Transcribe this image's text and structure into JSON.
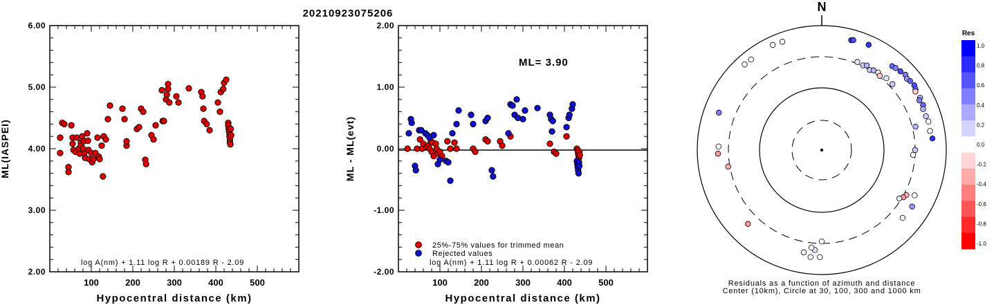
{
  "title": "20210923075206",
  "chart_data": [
    {
      "type": "scatter",
      "name": "magnitude-vs-distance",
      "xlabel": "Hypocentral distance (km)",
      "ylabel": "ML(IASPEI)",
      "xlim": [
        0,
        600
      ],
      "ylim": [
        2.0,
        6.0
      ],
      "x_ticks": [
        "100",
        "200",
        "300",
        "400",
        "500"
      ],
      "y_ticks": [
        "2.00",
        "3.00",
        "4.00",
        "5.00",
        "6.00"
      ],
      "formula": "log A(nm) + 1.11 log R + 0.00189 R - 2.09",
      "marker_color": "#dd0000",
      "points": [
        [
          25,
          4.18
        ],
        [
          25,
          3.93
        ],
        [
          30,
          4.42
        ],
        [
          35,
          4.4
        ],
        [
          45,
          3.7
        ],
        [
          45,
          3.62
        ],
        [
          52,
          4.38
        ],
        [
          55,
          4.18
        ],
        [
          55,
          4.08
        ],
        [
          57,
          3.98
        ],
        [
          62,
          3.95
        ],
        [
          65,
          4.18
        ],
        [
          70,
          4.0
        ],
        [
          72,
          3.92
        ],
        [
          75,
          4.1
        ],
        [
          75,
          4.05
        ],
        [
          78,
          4.2
        ],
        [
          80,
          4.0
        ],
        [
          82,
          4.12
        ],
        [
          83,
          3.92
        ],
        [
          85,
          3.85
        ],
        [
          90,
          4.25
        ],
        [
          92,
          4.13
        ],
        [
          93,
          3.98
        ],
        [
          95,
          3.83
        ],
        [
          100,
          3.93
        ],
        [
          102,
          3.78
        ],
        [
          105,
          3.83
        ],
        [
          110,
          3.93
        ],
        [
          115,
          4.18
        ],
        [
          118,
          3.87
        ],
        [
          120,
          3.83
        ],
        [
          125,
          4.05
        ],
        [
          128,
          3.55
        ],
        [
          130,
          4.2
        ],
        [
          135,
          4.15
        ],
        [
          140,
          4.48
        ],
        [
          145,
          4.7
        ],
        [
          175,
          4.65
        ],
        [
          180,
          4.48
        ],
        [
          185,
          4.05
        ],
        [
          185,
          4.12
        ],
        [
          210,
          4.32
        ],
        [
          215,
          4.35
        ],
        [
          220,
          4.65
        ],
        [
          225,
          4.6
        ],
        [
          230,
          3.82
        ],
        [
          232,
          3.75
        ],
        [
          245,
          4.22
        ],
        [
          250,
          4.15
        ],
        [
          255,
          4.38
        ],
        [
          270,
          4.95
        ],
        [
          272,
          4.45
        ],
        [
          275,
          4.45
        ],
        [
          280,
          4.8
        ],
        [
          282,
          4.88
        ],
        [
          285,
          4.97
        ],
        [
          285,
          5.05
        ],
        [
          288,
          4.75
        ],
        [
          305,
          4.85
        ],
        [
          310,
          4.75
        ],
        [
          335,
          4.98
        ],
        [
          365,
          4.92
        ],
        [
          368,
          4.85
        ],
        [
          370,
          4.65
        ],
        [
          372,
          4.45
        ],
        [
          378,
          4.4
        ],
        [
          385,
          4.3
        ],
        [
          405,
          4.75
        ],
        [
          410,
          4.6
        ],
        [
          412,
          4.92
        ],
        [
          418,
          4.97
        ],
        [
          420,
          5.07
        ],
        [
          425,
          5.12
        ],
        [
          430,
          4.42
        ],
        [
          430,
          4.38
        ],
        [
          431,
          4.33
        ],
        [
          432,
          4.28
        ],
        [
          433,
          4.25
        ],
        [
          433,
          4.2
        ],
        [
          434,
          4.15
        ],
        [
          434,
          4.1
        ],
        [
          435,
          4.07
        ],
        [
          436,
          4.32
        ],
        [
          437,
          4.22
        ]
      ]
    },
    {
      "type": "scatter",
      "name": "residual-vs-distance",
      "xlabel": "Hypocentral distance (km)",
      "ylabel": "ML - ML(evt)",
      "xlim": [
        0,
        600
      ],
      "ylim": [
        -2.0,
        2.0
      ],
      "x_ticks": [
        "100",
        "200",
        "300",
        "400",
        "500"
      ],
      "y_ticks": [
        "-2.00",
        "-1.00",
        "0.00",
        "1.00",
        "2.00"
      ],
      "ml_label": "ML=  3.90",
      "legend": [
        {
          "label": "25%-75% values for trimmed mean",
          "color": "#dd0000"
        },
        {
          "label": "Rejected values",
          "color": "#1010cc"
        }
      ],
      "formula": "log A(nm) + 1.11 log R + 0.00062 R - 2.09",
      "series": [
        {
          "name": "25%-75% values for trimmed mean",
          "color": "#dd0000",
          "points": [
            [
              22,
              0.0
            ],
            [
              45,
              0.0
            ],
            [
              52,
              0.15
            ],
            [
              57,
              0.0
            ],
            [
              60,
              0.08
            ],
            [
              68,
              0.03
            ],
            [
              72,
              0.05
            ],
            [
              75,
              0.0
            ],
            [
              78,
              0.12
            ],
            [
              80,
              -0.05
            ],
            [
              82,
              0.1
            ],
            [
              85,
              -0.12
            ],
            [
              90,
              0.08
            ],
            [
              92,
              0.0
            ],
            [
              95,
              -0.08
            ],
            [
              100,
              -0.05
            ],
            [
              105,
              -0.12
            ],
            [
              118,
              0.12
            ],
            [
              125,
              0.0
            ],
            [
              135,
              0.1
            ],
            [
              140,
              0.0
            ],
            [
              180,
              0.0
            ],
            [
              185,
              -0.05
            ],
            [
              210,
              0.15
            ],
            [
              215,
              0.12
            ],
            [
              245,
              0.12
            ],
            [
              250,
              0.05
            ],
            [
              270,
              0.2
            ],
            [
              365,
              0.08
            ],
            [
              375,
              -0.05
            ],
            [
              380,
              -0.08
            ],
            [
              405,
              0.2
            ],
            [
              430,
              0.0
            ],
            [
              432,
              -0.03
            ],
            [
              433,
              -0.08
            ],
            [
              434,
              -0.12
            ],
            [
              435,
              -0.15
            ],
            [
              436,
              -0.05
            ],
            [
              437,
              -0.1
            ]
          ]
        },
        {
          "name": "Rejected values",
          "color": "#1010cc",
          "points": [
            [
              25,
              0.25
            ],
            [
              30,
              0.48
            ],
            [
              32,
              0.42
            ],
            [
              40,
              -0.28
            ],
            [
              42,
              -0.35
            ],
            [
              50,
              0.3
            ],
            [
              55,
              0.3
            ],
            [
              65,
              0.25
            ],
            [
              70,
              0.22
            ],
            [
              75,
              0.18
            ],
            [
              85,
              0.22
            ],
            [
              95,
              -0.25
            ],
            [
              100,
              -0.18
            ],
            [
              115,
              -0.2
            ],
            [
              120,
              -0.22
            ],
            [
              125,
              -0.52
            ],
            [
              130,
              0.25
            ],
            [
              140,
              0.4
            ],
            [
              145,
              0.62
            ],
            [
              175,
              0.55
            ],
            [
              180,
              0.4
            ],
            [
              210,
              0.45
            ],
            [
              215,
              0.5
            ],
            [
              225,
              -0.35
            ],
            [
              228,
              -0.45
            ],
            [
              265,
              0.25
            ],
            [
              270,
              0.72
            ],
            [
              275,
              0.7
            ],
            [
              280,
              0.55
            ],
            [
              285,
              0.8
            ],
            [
              288,
              0.5
            ],
            [
              300,
              0.48
            ],
            [
              305,
              0.62
            ],
            [
              335,
              0.66
            ],
            [
              365,
              0.55
            ],
            [
              368,
              0.48
            ],
            [
              370,
              0.28
            ],
            [
              372,
              0.45
            ],
            [
              405,
              0.35
            ],
            [
              410,
              0.5
            ],
            [
              412,
              0.55
            ],
            [
              418,
              0.65
            ],
            [
              420,
              0.72
            ],
            [
              430,
              -0.2
            ],
            [
              431,
              -0.25
            ],
            [
              432,
              -0.3
            ],
            [
              433,
              -0.35
            ],
            [
              434,
              -0.4
            ],
            [
              435,
              -0.22
            ],
            [
              436,
              -0.28
            ]
          ]
        }
      ]
    },
    {
      "type": "scatter",
      "name": "residual-polar-map",
      "north_label": "N",
      "caption_line1": "Residuals as a function of azimuth and distance",
      "caption_line2": "Center (10km), Circle at 30, 100, 300 and 1000 km",
      "colorbar_title": "Res",
      "colorbar_ticks": [
        "1.0",
        "0.8",
        "0.6",
        "0.4",
        "0.2",
        "0.0",
        "-0.2",
        "-0.4",
        "-0.6",
        "-0.8",
        "-1.0"
      ],
      "colorbar_colors": [
        "#0000ff",
        "#2a2aff",
        "#5555ff",
        "#7f7fff",
        "#aaaaff",
        "#d4d4ff",
        "#ffffff",
        "#ffd4d4",
        "#ffaaaa",
        "#ff7f7f",
        "#ff5555",
        "#ff2a2a",
        "#ff0000"
      ],
      "points_note": "azimuth in degrees (clockwise from N), distance in km, residual",
      "points": [
        [
          340,
          700,
          0.0
        ],
        [
          335,
          720,
          0.0
        ],
        [
          322,
          690,
          0.0
        ],
        [
          318,
          700,
          0.0
        ],
        [
          15,
          660,
          0.8
        ],
        [
          16,
          675,
          0.7
        ],
        [
          24,
          700,
          0.8
        ],
        [
          40,
          560,
          0.6
        ],
        [
          42,
          580,
          0.5
        ],
        [
          45,
          600,
          0.7
        ],
        [
          48,
          630,
          0.5
        ],
        [
          50,
          595,
          0.4
        ],
        [
          52,
          620,
          0.6
        ],
        [
          55,
          640,
          0.7
        ],
        [
          57,
          610,
          0.6
        ],
        [
          58,
          580,
          -0.2
        ],
        [
          62,
          600,
          0.3
        ],
        [
          63,
          560,
          0.5
        ],
        [
          66,
          590,
          0.6
        ],
        [
          68,
          555,
          0.3
        ],
        [
          72,
          560,
          0.2
        ],
        [
          75,
          580,
          0.0
        ],
        [
          80,
          570,
          0.0
        ],
        [
          84,
          600,
          0.8
        ],
        [
          22,
          320,
          0.1
        ],
        [
          26,
          310,
          0.2
        ],
        [
          28,
          330,
          0.3
        ],
        [
          31,
          300,
          0.2
        ],
        [
          33,
          320,
          0.3
        ],
        [
          36,
          330,
          -0.1
        ],
        [
          38,
          310,
          -0.2
        ],
        [
          42,
          340,
          0.1
        ],
        [
          47,
          340,
          0.2
        ],
        [
          76,
          340,
          0.3
        ],
        [
          90,
          300,
          0.2
        ],
        [
          93,
          280,
          0.0
        ],
        [
          118,
          330,
          -0.3
        ],
        [
          120,
          310,
          -0.4
        ],
        [
          122,
          280,
          0.1
        ],
        [
          116,
          440,
          0.0
        ],
        [
          122,
          500,
          0.4
        ],
        [
          130,
          480,
          0.0
        ],
        [
          180,
          280,
          0.0
        ],
        [
          184,
          390,
          0.1
        ],
        [
          186,
          360,
          0.0
        ],
        [
          190,
          450,
          0.0
        ],
        [
          260,
          320,
          -0.3
        ],
        [
          268,
          450,
          -0.4
        ],
        [
          272,
          440,
          0.0
        ],
        [
          290,
          560,
          0.5
        ],
        [
          225,
          460,
          -0.4
        ],
        [
          186,
          520,
          0.0
        ],
        [
          181,
          510,
          0.0
        ]
      ]
    }
  ]
}
